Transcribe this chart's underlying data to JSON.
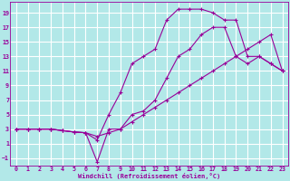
{
  "xlabel": "Windchill (Refroidissement éolien,°C)",
  "bg_color": "#b2e8e8",
  "grid_color": "#d0f0f0",
  "line_color": "#990099",
  "xlim": [
    -0.5,
    23.5
  ],
  "ylim": [
    -2,
    20.5
  ],
  "xticks": [
    0,
    1,
    2,
    3,
    4,
    5,
    6,
    7,
    8,
    9,
    10,
    11,
    12,
    13,
    14,
    15,
    16,
    17,
    18,
    19,
    20,
    21,
    22,
    23
  ],
  "yticks": [
    -1,
    1,
    3,
    5,
    7,
    9,
    11,
    13,
    15,
    17,
    19
  ],
  "curve1_x": [
    0,
    1,
    2,
    3,
    4,
    5,
    6,
    7,
    8,
    9,
    10,
    11,
    12,
    13,
    14,
    15,
    16,
    17,
    18,
    19,
    20,
    21,
    22,
    23
  ],
  "curve1_y": [
    3,
    3,
    3,
    3,
    2.8,
    2.6,
    2.5,
    -1.5,
    3,
    3,
    5,
    5.5,
    7,
    10,
    13,
    14,
    16,
    17,
    17,
    13,
    12,
    13,
    12,
    11
  ],
  "curve2_x": [
    0,
    1,
    2,
    3,
    4,
    5,
    6,
    7,
    8,
    9,
    10,
    11,
    12,
    13,
    14,
    15,
    16,
    17,
    18,
    19,
    20,
    21,
    22,
    23
  ],
  "curve2_y": [
    3,
    3,
    3,
    3,
    2.8,
    2.6,
    2.5,
    2,
    2.5,
    3,
    4,
    5,
    6,
    7,
    8,
    9,
    10,
    11,
    12,
    13,
    14,
    15,
    16,
    11
  ],
  "curve3_x": [
    0,
    1,
    2,
    3,
    4,
    5,
    6,
    7,
    8,
    9,
    10,
    11,
    12,
    13,
    14,
    15,
    16,
    17,
    18,
    19,
    20,
    21,
    22,
    23
  ],
  "curve3_y": [
    3,
    3,
    3,
    3,
    2.8,
    2.6,
    2.5,
    1.5,
    5,
    8,
    12,
    13,
    14,
    18,
    19.5,
    19.5,
    19.5,
    19,
    18,
    18,
    13,
    13,
    12,
    11
  ]
}
